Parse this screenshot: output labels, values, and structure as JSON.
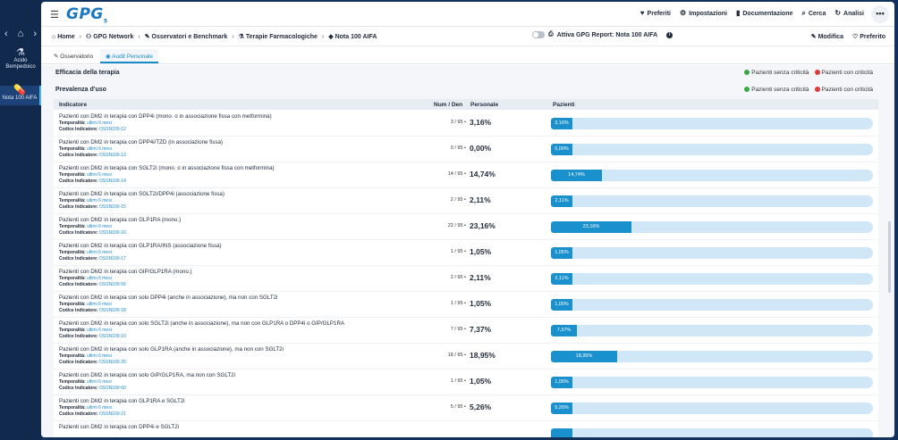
{
  "rail": {
    "nav_left": "‹",
    "nav_home": "⌂",
    "nav_right": "›",
    "items": [
      {
        "label": "Acido Bempedoico"
      },
      {
        "label": "Nota 100 AIFA"
      }
    ]
  },
  "header": {
    "logo": "GPG",
    "logo_sub": "5",
    "nav": [
      {
        "label": "Preferiti",
        "icon": "heart-icon"
      },
      {
        "label": "Impostazioni",
        "icon": "gear-icon"
      },
      {
        "label": "Documentazione",
        "icon": "book-icon"
      },
      {
        "label": "Cerca",
        "icon": "search-icon"
      },
      {
        "label": "Analisi",
        "icon": "refresh-icon"
      }
    ],
    "more": "•••"
  },
  "breadcrumb": {
    "items": [
      "Home",
      "GPG Network",
      "Osservatori e Benchmark",
      "Terapie Farmacologiche",
      "Nota 100 AIFA"
    ],
    "report_toggle": "Attiva GPG Report: Nota 100 AIFA",
    "edit": "Modifica",
    "favorite": "Preferito"
  },
  "tabs": [
    {
      "label": "Osservatorio"
    },
    {
      "label": "Audit Personale"
    }
  ],
  "sections": {
    "efficacy": "Efficacia della terapia",
    "prevalence": "Prevalenza d'uso",
    "legend_ok": "Pazienti senza criticità",
    "legend_bad": "Pazienti con criticità",
    "legend_ok_color": "#3aa845",
    "legend_bad_color": "#e03a3a"
  },
  "table": {
    "headers": {
      "indicator": "Indicatore",
      "numden": "Num / Den",
      "personal": "Personale",
      "patients": "Pazienti"
    },
    "meta_time_label": "Temporalità:",
    "meta_code_label": "Codice Indicatore:",
    "rows": [
      {
        "title": "Pazienti con DM2 in terapia con DPP4i (mono. o in associazione fissa con metformina)",
        "time": "ultimi 6 mesi",
        "code": "OSSN100-12",
        "numden": "3 / 95",
        "pct": "3,16%",
        "value": 3.16
      },
      {
        "title": "Pazienti con DM2 in terapia con DPP4i/TZD (in associazione fissa)",
        "time": "ultimi 6 mesi",
        "code": "OSSN100-13",
        "numden": "0 / 95",
        "pct": "0,00%",
        "value": 0.0
      },
      {
        "title": "Pazienti con DM2 in terapia con SGLT2i (mono. o in associazione fissa con metformina)",
        "time": "ultimi 6 mesi",
        "code": "OSSN100-14",
        "numden": "14 / 95",
        "pct": "14,74%",
        "value": 14.74
      },
      {
        "title": "Pazienti con DM2 in terapia con SGLT2i/DPP4i (associazione fissa)",
        "time": "ultimi 6 mesi",
        "code": "OSSN100-15",
        "numden": "2 / 95",
        "pct": "2,11%",
        "value": 2.11
      },
      {
        "title": "Pazienti con DM2 in terapia con GLP1RA (mono.)",
        "time": "ultimi 6 mesi",
        "code": "OSSN100-16",
        "numden": "22 / 95",
        "pct": "23,16%",
        "value": 23.16
      },
      {
        "title": "Pazienti con DM2 in terapia con GLP1RA/INS (associazione fissa)",
        "time": "ultimi 6 mesi",
        "code": "OSSN100-17",
        "numden": "1 / 95",
        "pct": "1,05%",
        "value": 1.05
      },
      {
        "title": "Pazienti con DM2 in terapia con GIP/GLP1RA (mono.)",
        "time": "ultimi 6 mesi",
        "code": "OSSN100-56",
        "numden": "2 / 95",
        "pct": "2,11%",
        "value": 2.11
      },
      {
        "title": "Pazienti con DM2 in terapia con solo DPP4i (anche in associazione), ma non con SGLT2i",
        "time": "ultimi 6 mesi",
        "code": "OSSN100-18",
        "numden": "1 / 95",
        "pct": "1,05%",
        "value": 1.05
      },
      {
        "title": "Pazienti con DM2 in terapia con solo SGLT2i (anche in associazione), ma non con GLP1RA o DPP4i o GIP/GLP1RA",
        "time": "ultimi 6 mesi",
        "code": "OSSN100-19",
        "numden": "7 / 95",
        "pct": "7,37%",
        "value": 7.37
      },
      {
        "title": "Pazienti con DM2 in terapia con solo GLP1RA (anche in associazione), ma non con SGLT2i",
        "time": "ultimi 6 mesi",
        "code": "OSSN100-20",
        "numden": "18 / 95",
        "pct": "18,95%",
        "value": 18.95
      },
      {
        "title": "Pazienti con DM2 in terapia con solo GIP/GLP1RA, ma non con SGLT2i",
        "time": "ultimi 6 mesi",
        "code": "OSSN100-60",
        "numden": "1 / 95",
        "pct": "1,05%",
        "value": 1.05
      },
      {
        "title": "Pazienti con DM2 in terapia con GLP1RA e SGLT2i",
        "time": "ultimi 6 mesi",
        "code": "OSSN100-21",
        "numden": "5 / 95",
        "pct": "5,26%",
        "value": 5.26
      },
      {
        "title": "Pazienti con DM2 in terapia con DPP4i e SGLT2i",
        "time": "",
        "code": "",
        "numden": "",
        "pct": "",
        "value": 0
      }
    ]
  }
}
